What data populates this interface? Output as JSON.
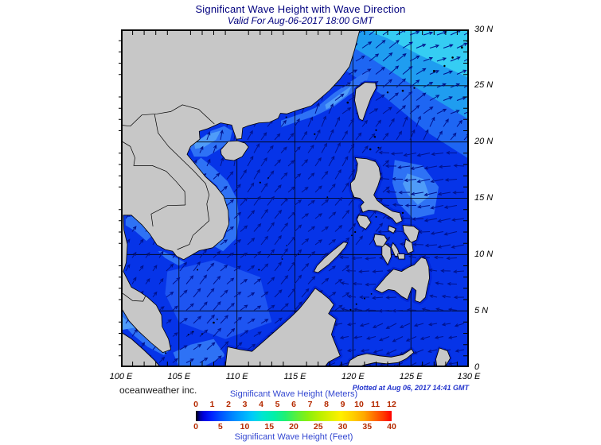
{
  "header": {
    "title": "Significant Wave Height with Wave Direction",
    "subtitle": "Valid For Aug-06-2017 18:00 GMT"
  },
  "map": {
    "lon_labels": [
      "100 E",
      "105 E",
      "110 E",
      "115 E",
      "120 E",
      "125 E",
      "130 E"
    ],
    "lon_values": [
      100,
      105,
      110,
      115,
      120,
      125,
      130
    ],
    "lat_labels": [
      "30 N",
      "25 N",
      "20 N",
      "15 N",
      "10 N",
      "5 N",
      "0"
    ],
    "lat_values": [
      30,
      25,
      20,
      15,
      10,
      5,
      0
    ]
  },
  "footer": {
    "credit": "oceanweather inc.",
    "plotted_at": "Plotted at Aug 06, 2017 14:41 GMT"
  },
  "legend": {
    "meters_label": "Significant Wave Height (Meters)",
    "feet_label": "Significant Wave Height (Feet)",
    "meters_ticks": [
      0,
      1,
      2,
      3,
      4,
      5,
      6,
      7,
      8,
      9,
      10,
      11,
      12
    ],
    "feet_ticks": [
      0,
      5,
      10,
      15,
      20,
      25,
      30,
      35,
      40
    ]
  },
  "colors": {
    "title": "#00007e",
    "legend_label": "#3347d1",
    "tick_number": "#b52a00",
    "plotted": "#2233cc",
    "ocean_base": "#0634e8",
    "patch_soft": "#1e55f2",
    "patch_mid": "#1e66f3",
    "patch_light": "#2e72f5",
    "patch_lighter": "#4f9cf8",
    "patch_cyan2": "#1f9df0",
    "patch_cyan": "#35cdf3",
    "halo": "#0126d8",
    "land": "#c7c7c7",
    "coast": "#000000",
    "arrow": "#00128c",
    "colorbar_stops": [
      [
        "#000000",
        0
      ],
      [
        "#000099",
        2
      ],
      [
        "#0000e0",
        4
      ],
      [
        "#0022ff",
        8
      ],
      [
        "#0055ff",
        13
      ],
      [
        "#0088ff",
        19
      ],
      [
        "#00aaff",
        24
      ],
      [
        "#00ccf8",
        29
      ],
      [
        "#00e6d0",
        34
      ],
      [
        "#00f0a8",
        40
      ],
      [
        "#22f070",
        46
      ],
      [
        "#55f040",
        51
      ],
      [
        "#88f010",
        57
      ],
      [
        "#b8f000",
        63
      ],
      [
        "#e0f000",
        69
      ],
      [
        "#fff000",
        74
      ],
      [
        "#ffd000",
        80
      ],
      [
        "#ffa800",
        86
      ],
      [
        "#ff7000",
        91
      ],
      [
        "#ff3800",
        96
      ],
      [
        "#ff0000",
        100
      ]
    ]
  },
  "chart_data": {
    "type": "heatmap",
    "title": "Significant Wave Height with Wave Direction",
    "valid_for": "Aug-06-2017 18:00 GMT",
    "region": {
      "lon_range_deg_e": [
        100,
        130
      ],
      "lat_range_deg_n": [
        0,
        30
      ]
    },
    "grid_step_deg": 5,
    "colorbar_scale_meters": [
      0,
      12
    ],
    "colorbar_scale_feet": [
      0,
      40
    ],
    "description": "South China Sea and Philippine Sea significant wave heights (mostly ~0.5-2.5 m, shown in blue-cyan shades); wave direction arrows point NE across the South China Sea and W toward the coast east of the Philippines."
  }
}
